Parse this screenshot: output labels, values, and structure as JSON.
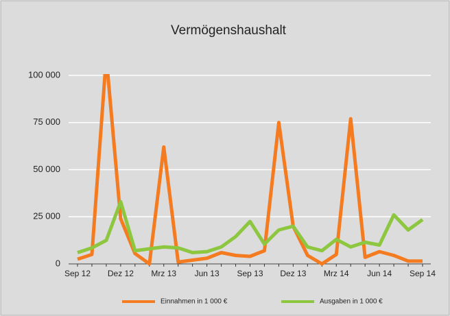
{
  "chart_data": {
    "type": "line",
    "title": "Vermögenshaushalt",
    "categories": [
      "Sep 12",
      null,
      null,
      "Dez 12",
      null,
      null,
      "Mrz 13",
      null,
      null,
      "Jun 13",
      null,
      null,
      "Sep 13",
      null,
      null,
      "Dez 13",
      null,
      null,
      "Mrz 14",
      null,
      null,
      "Jun 14",
      null,
      null,
      "Sep 14"
    ],
    "series": [
      {
        "name": "Einnahmen in 1 000 €",
        "color": "#f47b20",
        "values": [
          2500,
          5000,
          110000,
          24000,
          5500,
          0,
          62000,
          1000,
          2000,
          3000,
          6000,
          4500,
          4000,
          7000,
          75000,
          20000,
          4500,
          0,
          5000,
          77000,
          3500,
          6500,
          4500,
          1500,
          1500
        ]
      },
      {
        "name": "Ausgaben in 1 000 €",
        "color": "#8dc63f",
        "values": [
          6000,
          8500,
          12500,
          33000,
          7000,
          8000,
          9000,
          8500,
          6000,
          6500,
          9000,
          14500,
          22500,
          10500,
          18000,
          20000,
          9000,
          7000,
          13000,
          9000,
          11500,
          10000,
          26000,
          18000,
          23500
        ]
      }
    ],
    "ylim": [
      0,
      100000
    ],
    "yticks": [
      0,
      {
        "value": 25000,
        "label": "25 000"
      },
      {
        "value": 50000,
        "label": "50 000"
      },
      {
        "value": 75000,
        "label": "75 000"
      },
      {
        "value": 100000,
        "label": "100 000"
      }
    ],
    "grid": true,
    "legend": "bottom"
  }
}
